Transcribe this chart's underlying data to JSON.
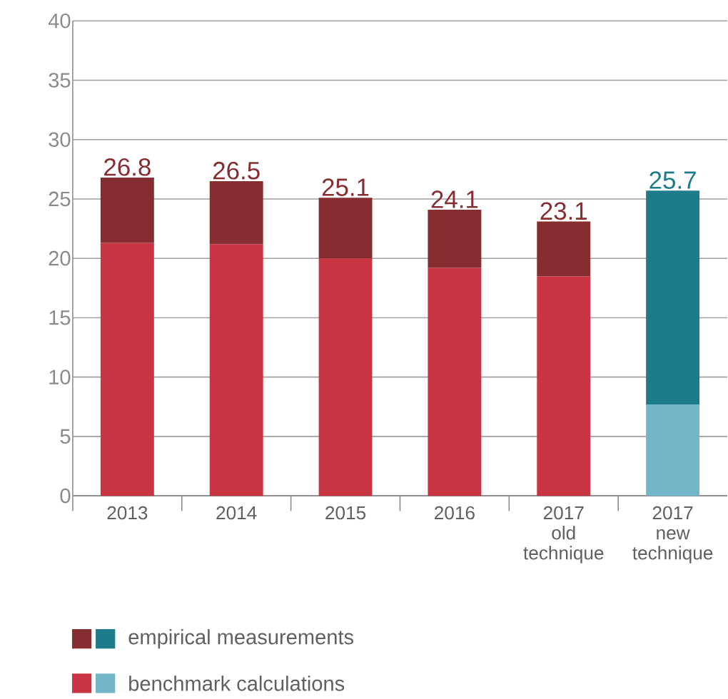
{
  "chart_data": {
    "type": "bar",
    "stacked": true,
    "categories": [
      "2013",
      "2014",
      "2015",
      "2016",
      "2017 old technique",
      "2017 new technique"
    ],
    "series": [
      {
        "name": "benchmark calculations",
        "colors": [
          "#c93542",
          "#c93542",
          "#c93542",
          "#c93542",
          "#c93542",
          "#72b6c8"
        ],
        "values": [
          21.3,
          21.2,
          20.0,
          19.2,
          18.5,
          7.7
        ]
      },
      {
        "name": "empirical measurements",
        "colors": [
          "#862d31",
          "#862d31",
          "#862d31",
          "#862d31",
          "#862d31",
          "#1e7b8a"
        ],
        "values": [
          5.5,
          5.3,
          5.1,
          4.9,
          4.6,
          18.0
        ]
      }
    ],
    "totals": [
      "26.8",
      "26.5",
      "25.1",
      "24.1",
      "23.1",
      "25.7"
    ],
    "ylim": [
      0,
      40
    ],
    "yticks": [
      0,
      5,
      10,
      15,
      20,
      25,
      30,
      35,
      40
    ],
    "grid": "y",
    "legend": "bottom"
  }
}
